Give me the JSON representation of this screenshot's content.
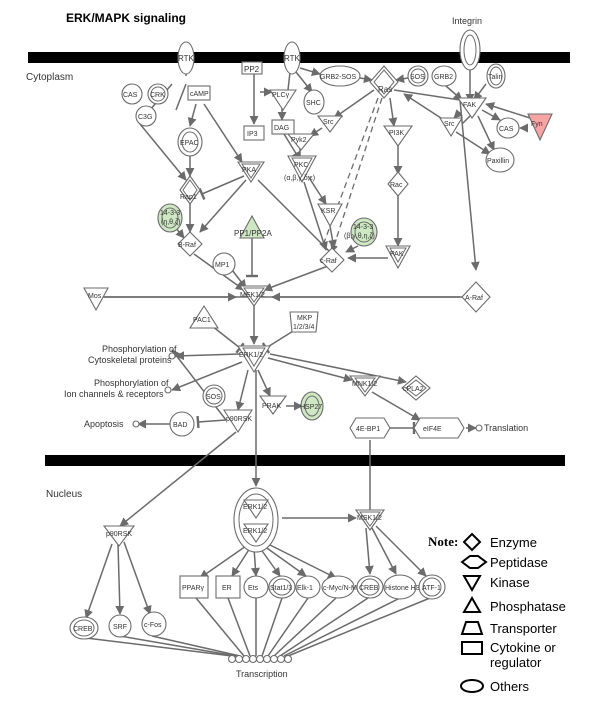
{
  "title": "ERK/MAPK signaling",
  "regions": {
    "cytoplasm": "Cytoplasm",
    "nucleus": "Nucleus"
  },
  "nodes": {
    "rtk1": "RTK",
    "rtk2": "RTK",
    "integrin": "Integrin",
    "pp2": "PP2",
    "plcg": "PLCγ",
    "grb2sos": "GRB2-SOS",
    "ras": "Ras",
    "sos": "SOS",
    "grb2b": "GRB2",
    "talin": "Talin",
    "cas1": "CAS",
    "crk": "CRK",
    "c3g": "C3G",
    "camp": "cAMP",
    "shc": "SHC",
    "dag": "DAG",
    "src1": "Src",
    "fak": "FAK",
    "src2": "Src",
    "cas2": "CAS",
    "fyn": "Fyn",
    "ip3": "IP3",
    "pyk2": "Pyk2",
    "pi3k": "PI3K",
    "paxillin": "Paxillin",
    "epac": "EPAC",
    "rap1": "Rap1",
    "pka": "PKA",
    "pkc": "PKC",
    "pkc_sub": "(α,β,γ,δ,ε)",
    "ksr": "KSR",
    "rac": "Rac",
    "p1433a": "14-3-3",
    "p1433a_sub": "(η,θ,ζ)",
    "p1433b": "14-3-3",
    "p1433b_sub": "(β,γ,θ,η,ζ)",
    "braf": "B-Raf",
    "pp1pp2a": "PP1/PP2A",
    "craf": "c-Raf",
    "pak": "PAK",
    "mp1": "MP1",
    "mos": "Mos",
    "mek12": "MEK1/2",
    "araf": "A-Raf",
    "pac1": "PAC1",
    "mkp": "MKP",
    "mkp_sub": "1/2/3/4",
    "erk12": "ERK1/2",
    "phos_cyto1": "Phosphorylation of",
    "phos_cyto2": "Cytoskeletal proteins",
    "phos_ion1": "Phosphorylation of",
    "phos_ion2": "Ion channels & receptors",
    "sos2": "SOS",
    "mnk12": "MNK1/2",
    "cpla2": "cPLA2",
    "prak": "PRAK",
    "hsp27": "HSP27",
    "apoptosis": "Apoptosis",
    "bad": "BAD",
    "p90rsk": "p90RSK",
    "eb1": "4E-BP1",
    "eif4e": "eIF4E",
    "translation": "Translation",
    "p90rsk_n": "p90RSK",
    "erk12_n1": "ERK1/2",
    "erk12_n2": "ERK1/2",
    "msk12": "MSK1/2",
    "creb1": "CREB",
    "srf": "SRF",
    "cfos": "c-Fos",
    "ppar": "PPARγ",
    "er": "ER",
    "ets": "Ets",
    "stat13": "Stat1/3",
    "elk1": "Elk-1",
    "cmyc": "c-Myc/N-Myc",
    "creb2": "CREB",
    "histone": "Histone H3",
    "atf1": "ATF-1",
    "transcription": "Transcription"
  },
  "legend": {
    "note": "Note:",
    "items": [
      {
        "shape": "diamond",
        "label": "Enzyme"
      },
      {
        "shape": "hexagon",
        "label": "Peptidase"
      },
      {
        "shape": "triangle-down",
        "label": "Kinase"
      },
      {
        "shape": "triangle-up",
        "label": "Phosphatase"
      },
      {
        "shape": "trapezoid",
        "label": "Transporter"
      },
      {
        "shape": "rectangle",
        "label": "Cytokine or"
      },
      {
        "shape": "none",
        "label": "regulator"
      },
      {
        "shape": "ellipse",
        "label": "Others"
      }
    ]
  },
  "colors": {
    "membrane": "#000000",
    "edge": "#6b6b6b",
    "highlight_green": "#cfe8c4",
    "highlight_red": "#f6a4a4"
  }
}
